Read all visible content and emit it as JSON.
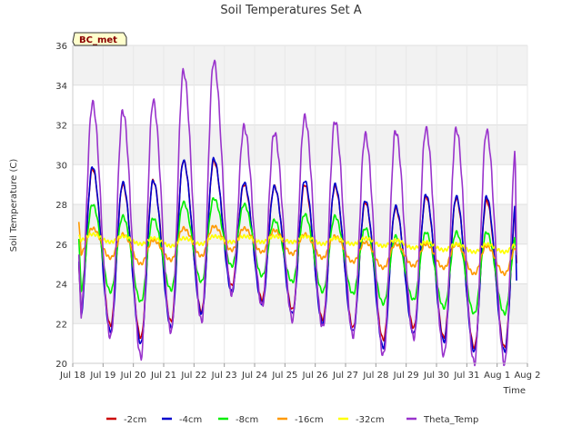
{
  "chart_data": {
    "type": "line",
    "title": "Soil Temperatures Set A",
    "xlabel": "Time",
    "ylabel": "Soil Temperature (C)",
    "badge": "BC_met",
    "ylim": [
      20,
      36
    ],
    "yticks": [
      20,
      22,
      24,
      26,
      28,
      30,
      32,
      34,
      36
    ],
    "xlim": [
      0,
      15
    ],
    "xtick_labels": [
      "Jul 18",
      "Jul 19",
      "Jul 20",
      "Jul 21",
      "Jul 22",
      "Jul 23",
      "Jul 24",
      "Jul 25",
      "Jul 26",
      "Jul 27",
      "Jul 28",
      "Jul 29",
      "Jul 30",
      "Jul 31",
      "Aug 1",
      "Aug 2"
    ],
    "grid": true,
    "legend_position": "bottom",
    "x_start": 0.2,
    "x_end": 14.65,
    "series": [
      {
        "name": "-2cm",
        "color": "#cc0000",
        "max": [
          29.8,
          29.0,
          29.2,
          30.2,
          30.2,
          29.0,
          28.9,
          29.0,
          28.9,
          28.1,
          27.8,
          28.4,
          28.3,
          28.2
        ],
        "min": [
          22.5,
          21.9,
          21.3,
          22.1,
          22.6,
          23.9,
          23.2,
          22.7,
          22.2,
          21.8,
          21.2,
          21.8,
          21.3,
          20.8
        ],
        "start": 25.1,
        "end": 24.5
      },
      {
        "name": "-4cm",
        "color": "#0000cc",
        "max": [
          29.9,
          29.1,
          29.2,
          30.2,
          30.3,
          29.1,
          28.9,
          29.2,
          29.0,
          28.2,
          27.9,
          28.5,
          28.4,
          28.4
        ],
        "min": [
          22.3,
          21.6,
          21.0,
          21.8,
          22.5,
          23.6,
          23.0,
          22.5,
          22.0,
          21.6,
          20.8,
          21.5,
          21.1,
          20.6
        ],
        "start": 25.2,
        "end": 23.4
      },
      {
        "name": "-8cm",
        "color": "#00ee00",
        "max": [
          28.0,
          27.4,
          27.3,
          28.1,
          28.3,
          28.0,
          27.2,
          27.5,
          27.4,
          26.8,
          26.4,
          26.6,
          26.6,
          26.6
        ],
        "min": [
          23.6,
          23.6,
          23.1,
          23.7,
          24.1,
          24.9,
          24.4,
          24.1,
          23.6,
          23.5,
          23.0,
          23.2,
          22.8,
          22.5
        ],
        "start": 26.3,
        "end": 25.3
      },
      {
        "name": "-16cm",
        "color": "#ff9900",
        "max": [
          26.8,
          26.5,
          26.2,
          26.8,
          26.9,
          26.8,
          26.7,
          26.5,
          26.4,
          26.1,
          26.0,
          26.0,
          26.0,
          25.9
        ],
        "min": [
          25.5,
          25.3,
          25.0,
          25.2,
          25.4,
          25.7,
          25.6,
          25.5,
          25.3,
          25.1,
          24.8,
          24.9,
          24.8,
          24.5
        ],
        "start": 27.1,
        "end": 25.6
      },
      {
        "name": "-32cm",
        "color": "#ffff00",
        "max": [
          26.5,
          26.4,
          26.3,
          26.3,
          26.4,
          26.4,
          26.4,
          26.4,
          26.3,
          26.3,
          26.2,
          26.1,
          26.0,
          26.0
        ],
        "min": [
          26.2,
          26.1,
          26.0,
          25.9,
          26.0,
          26.1,
          26.1,
          26.1,
          26.0,
          26.0,
          25.9,
          25.8,
          25.7,
          25.6
        ],
        "start": 26.4,
        "end": 25.7
      },
      {
        "name": "Theta_Temp",
        "color": "#9933cc",
        "max": [
          33.1,
          32.7,
          33.2,
          34.7,
          35.2,
          31.9,
          31.6,
          32.4,
          32.2,
          31.5,
          31.7,
          31.8,
          31.8,
          31.7
        ],
        "min": [
          22.2,
          21.3,
          20.3,
          21.6,
          22.1,
          23.5,
          22.9,
          22.2,
          21.8,
          21.4,
          20.4,
          21.3,
          20.4,
          20.0
        ],
        "start": 25.3,
        "end": 24.0
      }
    ]
  }
}
